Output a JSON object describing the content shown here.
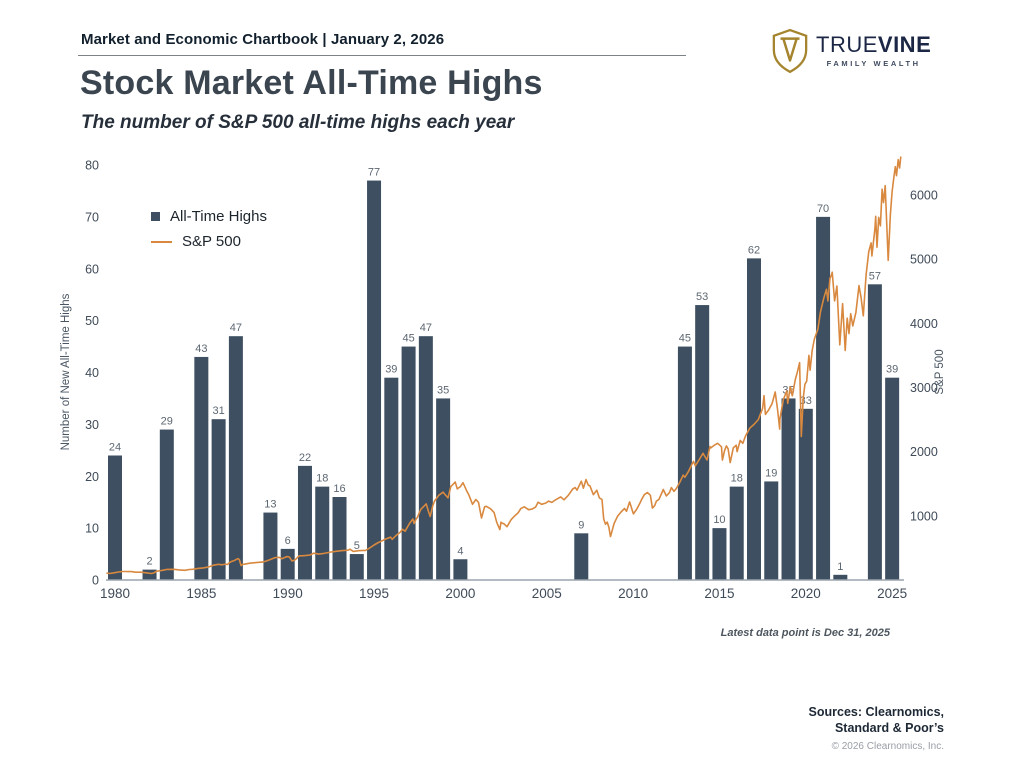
{
  "header": {
    "chartbook": "Market and Economic Chartbook | January 2, 2026"
  },
  "logo": {
    "brand_primary": "TRUE",
    "brand_secondary": "VINE",
    "tagline": "FAMILY WEALTH"
  },
  "title": "Stock Market All-Time Highs",
  "subtitle": "The number of S&P 500 all-time highs each year",
  "legend": {
    "bars": "All-Time Highs",
    "line": "S&P 500"
  },
  "footnote": "Latest data point is Dec 31, 2025",
  "sources": {
    "line1": "Sources: Clearnomics,",
    "line2": "Standard & Poor’s",
    "copyright": "© 2026 Clearnomics, Inc."
  },
  "colors": {
    "bar": "#3d4f60",
    "line": "#d9893f",
    "logo_gold": "#a5842e",
    "logo_navy": "#1b2744",
    "tick_text": "#3f4b58",
    "axis_title": "#4a5663",
    "bar_label": "#5d6772",
    "axis_line": "#9aa4ad"
  },
  "chart_data": {
    "type": "bar+line",
    "title": "Stock Market All-Time Highs",
    "subtitle": "The number of S&P 500 all-time highs each year",
    "grid": "off",
    "legend_position": "upper-left",
    "left_axis": {
      "label": "Number of New All-Time Highs",
      "ticks": [
        0,
        10,
        20,
        30,
        40,
        50,
        60,
        70,
        80
      ],
      "range": [
        0,
        80
      ]
    },
    "right_axis": {
      "label": "S&P 500",
      "ticks": [
        1000,
        2000,
        3000,
        4000,
        5000,
        6000
      ],
      "range": [
        0,
        6470
      ]
    },
    "x_axis": {
      "ticks": [
        1980,
        1985,
        1990,
        1995,
        2000,
        2005,
        2010,
        2015,
        2020,
        2025
      ],
      "range": [
        1979.5,
        2026
      ]
    },
    "bars": {
      "name": "All-Time Highs",
      "start_year": 1980,
      "values": [
        24,
        0,
        2,
        29,
        0,
        43,
        31,
        47,
        0,
        13,
        6,
        22,
        18,
        16,
        5,
        77,
        39,
        45,
        47,
        35,
        4,
        0,
        0,
        0,
        0,
        0,
        0,
        9,
        0,
        0,
        0,
        0,
        0,
        45,
        53,
        10,
        18,
        62,
        19,
        35,
        33,
        70,
        1,
        0,
        57,
        39
      ]
    },
    "line_series": {
      "name": "S&P 500",
      "points": [
        [
          1980.0,
          108
        ],
        [
          1980.2,
          102
        ],
        [
          1980.45,
          112
        ],
        [
          1980.7,
          125
        ],
        [
          1980.95,
          133
        ],
        [
          1981.1,
          132
        ],
        [
          1981.45,
          131
        ],
        [
          1981.7,
          122
        ],
        [
          1982.0,
          122
        ],
        [
          1982.3,
          112
        ],
        [
          1982.6,
          102
        ],
        [
          1982.75,
          110
        ],
        [
          1982.9,
          135
        ],
        [
          1983.0,
          141
        ],
        [
          1983.3,
          152
        ],
        [
          1983.5,
          165
        ],
        [
          1983.8,
          167
        ],
        [
          1984.0,
          165
        ],
        [
          1984.2,
          157
        ],
        [
          1984.55,
          151
        ],
        [
          1984.8,
          164
        ],
        [
          1985.0,
          167
        ],
        [
          1985.3,
          180
        ],
        [
          1985.6,
          188
        ],
        [
          1985.85,
          200
        ],
        [
          1986.0,
          211
        ],
        [
          1986.2,
          230
        ],
        [
          1986.5,
          245
        ],
        [
          1986.7,
          237
        ],
        [
          1986.9,
          248
        ],
        [
          1987.0,
          242
        ],
        [
          1987.2,
          284
        ],
        [
          1987.4,
          303
        ],
        [
          1987.62,
          334
        ],
        [
          1987.7,
          320
        ],
        [
          1987.8,
          225
        ],
        [
          1987.9,
          245
        ],
        [
          1988.0,
          247
        ],
        [
          1988.3,
          262
        ],
        [
          1988.6,
          270
        ],
        [
          1988.9,
          278
        ],
        [
          1989.0,
          278
        ],
        [
          1989.25,
          295
        ],
        [
          1989.5,
          320
        ],
        [
          1989.75,
          348
        ],
        [
          1990.0,
          353
        ],
        [
          1990.15,
          332
        ],
        [
          1990.45,
          365
        ],
        [
          1990.6,
          358
        ],
        [
          1990.75,
          296
        ],
        [
          1990.9,
          310
        ],
        [
          1991.0,
          330
        ],
        [
          1991.15,
          375
        ],
        [
          1991.5,
          380
        ],
        [
          1991.8,
          390
        ],
        [
          1992.0,
          417
        ],
        [
          1992.3,
          404
        ],
        [
          1992.6,
          414
        ],
        [
          1992.9,
          430
        ],
        [
          1993.0,
          436
        ],
        [
          1993.3,
          448
        ],
        [
          1993.6,
          456
        ],
        [
          1993.9,
          463
        ],
        [
          1994.0,
          466
        ],
        [
          1994.1,
          480
        ],
        [
          1994.3,
          446
        ],
        [
          1994.6,
          456
        ],
        [
          1994.9,
          461
        ],
        [
          1995.0,
          459
        ],
        [
          1995.25,
          500
        ],
        [
          1995.5,
          545
        ],
        [
          1995.75,
          584
        ],
        [
          1996.0,
          616
        ],
        [
          1996.2,
          640
        ],
        [
          1996.45,
          668
        ],
        [
          1996.55,
          635
        ],
        [
          1996.8,
          700
        ],
        [
          1997.0,
          741
        ],
        [
          1997.15,
          790
        ],
        [
          1997.3,
          760
        ],
        [
          1997.55,
          880
        ],
        [
          1997.75,
          950
        ],
        [
          1997.82,
          880
        ],
        [
          1997.95,
          960
        ],
        [
          1998.0,
          970
        ],
        [
          1998.2,
          1100
        ],
        [
          1998.52,
          1186
        ],
        [
          1998.65,
          1067
        ],
        [
          1998.75,
          990
        ],
        [
          1998.9,
          1160
        ],
        [
          1999.0,
          1229
        ],
        [
          1999.25,
          1320
        ],
        [
          1999.5,
          1370
        ],
        [
          1999.62,
          1330
        ],
        [
          1999.78,
          1280
        ],
        [
          1999.95,
          1460
        ],
        [
          2000.0,
          1469
        ],
        [
          2000.2,
          1527
        ],
        [
          2000.32,
          1420
        ],
        [
          2000.5,
          1455
        ],
        [
          2000.65,
          1517
        ],
        [
          2000.85,
          1400
        ],
        [
          2001.0,
          1320
        ],
        [
          2001.2,
          1180
        ],
        [
          2001.4,
          1255
        ],
        [
          2001.55,
          1210
        ],
        [
          2001.72,
          966
        ],
        [
          2001.9,
          1140
        ],
        [
          2002.0,
          1148
        ],
        [
          2002.25,
          1110
        ],
        [
          2002.45,
          1050
        ],
        [
          2002.6,
          900
        ],
        [
          2002.78,
          785
        ],
        [
          2002.85,
          900
        ],
        [
          2002.95,
          880
        ],
        [
          2003.0,
          880
        ],
        [
          2003.2,
          830
        ],
        [
          2003.45,
          945
        ],
        [
          2003.65,
          1000
        ],
        [
          2003.85,
          1050
        ],
        [
          2004.0,
          1112
        ],
        [
          2004.2,
          1140
        ],
        [
          2004.45,
          1095
        ],
        [
          2004.65,
          1105
        ],
        [
          2004.85,
          1135
        ],
        [
          2005.0,
          1212
        ],
        [
          2005.2,
          1180
        ],
        [
          2005.45,
          1200
        ],
        [
          2005.6,
          1230
        ],
        [
          2005.8,
          1210
        ],
        [
          2006.0,
          1248
        ],
        [
          2006.3,
          1295
        ],
        [
          2006.5,
          1250
        ],
        [
          2006.75,
          1320
        ],
        [
          2007.0,
          1418
        ],
        [
          2007.15,
          1440
        ],
        [
          2007.25,
          1400
        ],
        [
          2007.5,
          1540
        ],
        [
          2007.62,
          1430
        ],
        [
          2007.77,
          1565
        ],
        [
          2007.9,
          1480
        ],
        [
          2008.0,
          1468
        ],
        [
          2008.2,
          1330
        ],
        [
          2008.4,
          1400
        ],
        [
          2008.55,
          1280
        ],
        [
          2008.7,
          1255
        ],
        [
          2008.8,
          950
        ],
        [
          2008.9,
          870
        ],
        [
          2009.0,
          903
        ],
        [
          2009.1,
          820
        ],
        [
          2009.19,
          677
        ],
        [
          2009.4,
          880
        ],
        [
          2009.6,
          995
        ],
        [
          2009.8,
          1060
        ],
        [
          2010.0,
          1115
        ],
        [
          2010.12,
          1070
        ],
        [
          2010.3,
          1217
        ],
        [
          2010.52,
          1030
        ],
        [
          2010.7,
          1100
        ],
        [
          2010.9,
          1200
        ],
        [
          2011.0,
          1258
        ],
        [
          2011.15,
          1330
        ],
        [
          2011.33,
          1363
        ],
        [
          2011.5,
          1320
        ],
        [
          2011.62,
          1120
        ],
        [
          2011.75,
          1160
        ],
        [
          2011.85,
          1230
        ],
        [
          2012.0,
          1258
        ],
        [
          2012.25,
          1410
        ],
        [
          2012.42,
          1310
        ],
        [
          2012.6,
          1360
        ],
        [
          2012.72,
          1440
        ],
        [
          2012.87,
          1380
        ],
        [
          2013.0,
          1426
        ],
        [
          2013.2,
          1520
        ],
        [
          2013.4,
          1635
        ],
        [
          2013.5,
          1600
        ],
        [
          2013.7,
          1690
        ],
        [
          2013.9,
          1800
        ],
        [
          2014.0,
          1848
        ],
        [
          2014.1,
          1780
        ],
        [
          2014.35,
          1885
        ],
        [
          2014.55,
          1975
        ],
        [
          2014.78,
          1870
        ],
        [
          2014.95,
          2080
        ],
        [
          2015.0,
          2059
        ],
        [
          2015.2,
          2100
        ],
        [
          2015.4,
          2130
        ],
        [
          2015.62,
          2075
        ],
        [
          2015.67,
          1868
        ],
        [
          2015.8,
          2020
        ],
        [
          2015.9,
          2090
        ],
        [
          2016.0,
          2044
        ],
        [
          2016.12,
          1829
        ],
        [
          2016.3,
          2060
        ],
        [
          2016.47,
          2100
        ],
        [
          2016.52,
          2000
        ],
        [
          2016.7,
          2175
        ],
        [
          2016.85,
          2130
        ],
        [
          2017.0,
          2239
        ],
        [
          2017.25,
          2365
        ],
        [
          2017.5,
          2425
        ],
        [
          2017.75,
          2500
        ],
        [
          2018.0,
          2674
        ],
        [
          2018.08,
          2872
        ],
        [
          2018.16,
          2581
        ],
        [
          2018.35,
          2650
        ],
        [
          2018.55,
          2750
        ],
        [
          2018.73,
          2930
        ],
        [
          2018.87,
          2650
        ],
        [
          2018.99,
          2351
        ],
        [
          2019.0,
          2507
        ],
        [
          2019.2,
          2810
        ],
        [
          2019.4,
          2945
        ],
        [
          2019.45,
          2750
        ],
        [
          2019.6,
          3010
        ],
        [
          2019.72,
          2870
        ],
        [
          2019.9,
          3130
        ],
        [
          2020.0,
          3231
        ],
        [
          2020.14,
          3386
        ],
        [
          2020.24,
          2237
        ],
        [
          2020.35,
          2830
        ],
        [
          2020.45,
          3050
        ],
        [
          2020.55,
          3100
        ],
        [
          2020.68,
          3500
        ],
        [
          2020.75,
          3270
        ],
        [
          2020.87,
          3580
        ],
        [
          2021.0,
          3756
        ],
        [
          2021.2,
          3910
        ],
        [
          2021.35,
          4180
        ],
        [
          2021.55,
          4400
        ],
        [
          2021.7,
          4530
        ],
        [
          2021.78,
          4350
        ],
        [
          2021.9,
          4700
        ],
        [
          2022.0,
          4766
        ],
        [
          2022.03,
          4796
        ],
        [
          2022.17,
          4350
        ],
        [
          2022.3,
          4580
        ],
        [
          2022.47,
          3666
        ],
        [
          2022.63,
          4305
        ],
        [
          2022.78,
          3577
        ],
        [
          2022.9,
          4080
        ],
        [
          2023.0,
          3840
        ],
        [
          2023.1,
          4150
        ],
        [
          2023.22,
          3960
        ],
        [
          2023.4,
          4170
        ],
        [
          2023.58,
          4588
        ],
        [
          2023.7,
          4400
        ],
        [
          2023.83,
          4117
        ],
        [
          2023.95,
          4600
        ],
        [
          2024.0,
          4770
        ],
        [
          2024.15,
          5120
        ],
        [
          2024.28,
          5254
        ],
        [
          2024.33,
          5050
        ],
        [
          2024.5,
          5470
        ],
        [
          2024.55,
          5667
        ],
        [
          2024.62,
          5186
        ],
        [
          2024.72,
          5650
        ],
        [
          2024.82,
          5520
        ],
        [
          2024.92,
          6090
        ],
        [
          2025.0,
          5882
        ],
        [
          2025.1,
          6144
        ],
        [
          2025.18,
          5600
        ],
        [
          2025.27,
          4982
        ],
        [
          2025.4,
          5700
        ],
        [
          2025.5,
          6050
        ],
        [
          2025.6,
          6280
        ],
        [
          2025.68,
          6440
        ],
        [
          2025.75,
          6300
        ],
        [
          2025.85,
          6550
        ],
        [
          2025.93,
          6420
        ],
        [
          2026.0,
          6600
        ]
      ]
    },
    "annotations": [
      "Latest data point is Dec 31, 2025"
    ]
  }
}
